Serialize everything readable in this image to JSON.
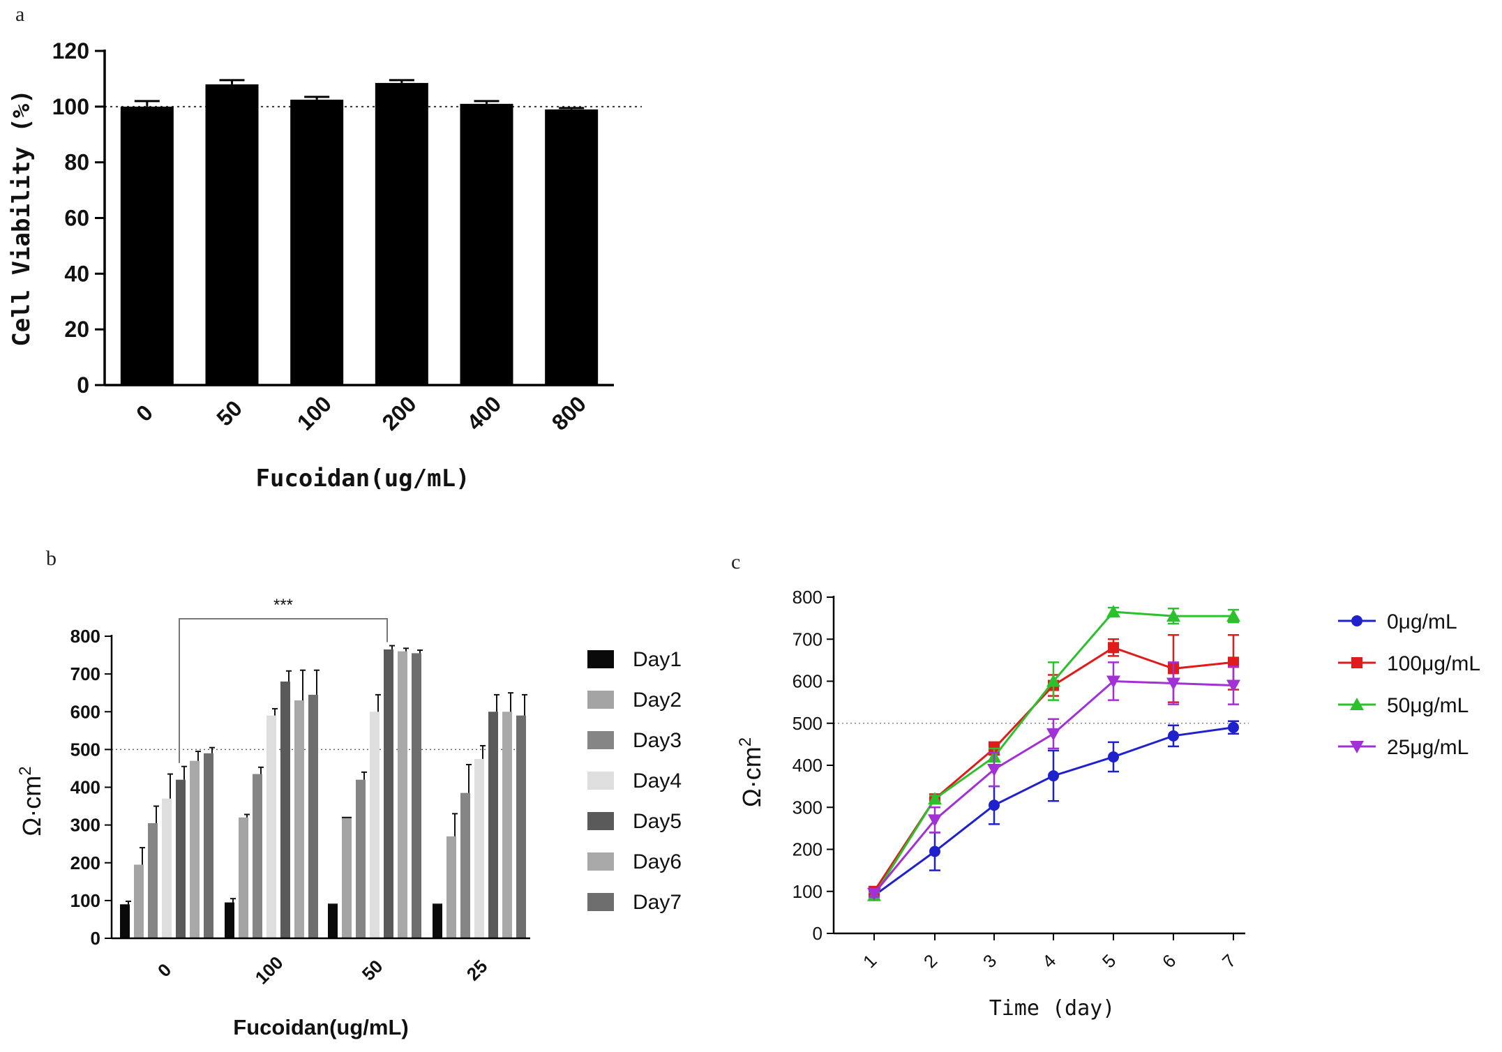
{
  "chart_data": [
    {
      "panel": "a",
      "type": "bar",
      "categories": [
        "0",
        "50",
        "100",
        "200",
        "400",
        "800"
      ],
      "values": [
        100,
        108,
        102.5,
        108.5,
        101,
        99
      ],
      "errors": [
        2,
        1.5,
        1,
        1,
        1,
        0.5
      ],
      "xlabel": "Fucoidan(ug/mL)",
      "ylabel": "Cell Viability (%)",
      "ylim": [
        0,
        120
      ],
      "yticks": [
        "0",
        "20",
        "40",
        "60",
        "80",
        "100",
        "120"
      ],
      "reference_line": 100,
      "bar_color": "#000000"
    },
    {
      "panel": "b",
      "type": "bar",
      "categories": [
        "0",
        "100",
        "50",
        "25"
      ],
      "series": [
        {
          "name": "Day1",
          "color": "#0a0a0a",
          "values": [
            90,
            95,
            90,
            90
          ],
          "errors": [
            8,
            10,
            0,
            0
          ]
        },
        {
          "name": "Day2",
          "color": "#a4a4a4",
          "values": [
            195,
            320,
            320,
            270
          ],
          "errors": [
            45,
            8,
            0,
            60
          ]
        },
        {
          "name": "Day3",
          "color": "#858585",
          "values": [
            305,
            435,
            420,
            385
          ],
          "errors": [
            45,
            18,
            20,
            75
          ]
        },
        {
          "name": "Day4",
          "color": "#dedede",
          "values": [
            370,
            590,
            600,
            475
          ],
          "errors": [
            65,
            18,
            45,
            35
          ]
        },
        {
          "name": "Day5",
          "color": "#5a5a5a",
          "values": [
            420,
            680,
            765,
            600
          ],
          "errors": [
            35,
            28,
            10,
            45
          ]
        },
        {
          "name": "Day6",
          "color": "#a8a8a8",
          "values": [
            470,
            630,
            760,
            600
          ],
          "errors": [
            25,
            80,
            8,
            50
          ]
        },
        {
          "name": "Day7",
          "color": "#6e6e6e",
          "values": [
            490,
            645,
            755,
            590
          ],
          "errors": [
            15,
            65,
            8,
            55
          ]
        }
      ],
      "xlabel": "Fucoidan(ug/mL)",
      "ylabel": "Ω·cm",
      "ylabel_sup": "2",
      "ylim": [
        0,
        800
      ],
      "yticks": [
        "0",
        "100",
        "200",
        "300",
        "400",
        "500",
        "600",
        "700",
        "800"
      ],
      "reference_line": 500,
      "significance": "***"
    },
    {
      "panel": "c",
      "type": "line",
      "x": [
        1,
        2,
        3,
        4,
        5,
        6,
        7
      ],
      "xticks": [
        "1",
        "2",
        "3",
        "4",
        "5",
        "6",
        "7"
      ],
      "series": [
        {
          "name": "0μg/mL",
          "color": "#1f22cc",
          "marker": "circle",
          "values": [
            90,
            195,
            305,
            375,
            420,
            470,
            490
          ],
          "errors": [
            8,
            45,
            45,
            60,
            35,
            25,
            15
          ]
        },
        {
          "name": "100μg/mL",
          "color": "#e01b1b",
          "marker": "square",
          "values": [
            100,
            320,
            440,
            590,
            680,
            630,
            645
          ],
          "errors": [
            8,
            10,
            15,
            25,
            20,
            80,
            65
          ]
        },
        {
          "name": "50μg/mL",
          "color": "#2cc02c",
          "marker": "triangle-up",
          "values": [
            90,
            320,
            420,
            600,
            765,
            755,
            755
          ],
          "errors": [
            8,
            8,
            20,
            45,
            10,
            18,
            15
          ]
        },
        {
          "name": "25μg/mL",
          "color": "#a32fd6",
          "marker": "triangle-down",
          "values": [
            95,
            270,
            390,
            475,
            600,
            595,
            590
          ],
          "errors": [
            8,
            30,
            40,
            35,
            45,
            50,
            45
          ]
        }
      ],
      "xlabel": "Time (day)",
      "ylabel": "Ω·cm",
      "ylabel_sup": "2",
      "ylim": [
        0,
        800
      ],
      "yticks": [
        "0",
        "100",
        "200",
        "300",
        "400",
        "500",
        "600",
        "700",
        "800"
      ],
      "reference_line": 500
    }
  ]
}
